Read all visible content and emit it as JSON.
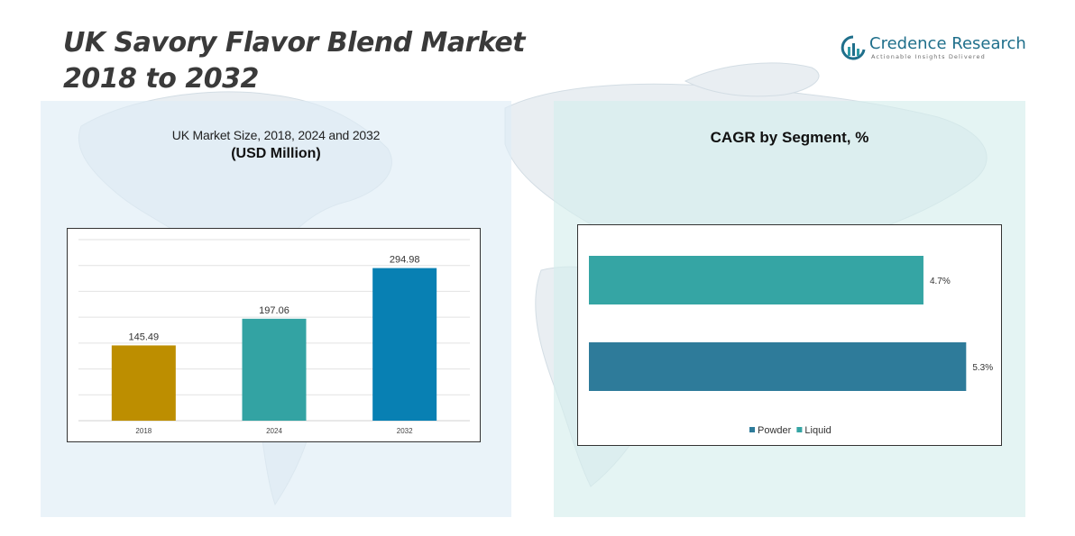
{
  "page": {
    "title_line1": "UK Savory Flavor Blend Market",
    "title_line2": "2018 to 2032"
  },
  "logo": {
    "name": "Credence Research",
    "tagline": "Actionable Insights Delivered"
  },
  "colors": {
    "bar_2018": "#bd8e00",
    "bar_2024": "#33a3a3",
    "bar_2032": "#0880b3",
    "powder": "#2e7b9a",
    "liquid": "#35a5a4"
  },
  "chart_data": [
    {
      "type": "bar",
      "title": "UK Market Size, 2018, 2024 and 2032",
      "subtitle": "(USD Million)",
      "categories": [
        "2018",
        "2024",
        "2032"
      ],
      "values": [
        145.49,
        197.06,
        294.98
      ],
      "value_labels": [
        "145.49",
        "197.06",
        "294.98"
      ],
      "ylim": [
        0,
        350
      ],
      "grid": true,
      "grid_step": 50
    },
    {
      "type": "bar",
      "orientation": "horizontal",
      "title": "CAGR by Segment, %",
      "categories": [
        "Liquid",
        "Powder"
      ],
      "values": [
        4.7,
        5.3
      ],
      "value_labels": [
        "4.7%",
        "5.3%"
      ],
      "xlim": [
        0,
        5.6
      ],
      "legend": [
        "Powder",
        "Liquid"
      ],
      "legend_position": "bottom"
    }
  ]
}
